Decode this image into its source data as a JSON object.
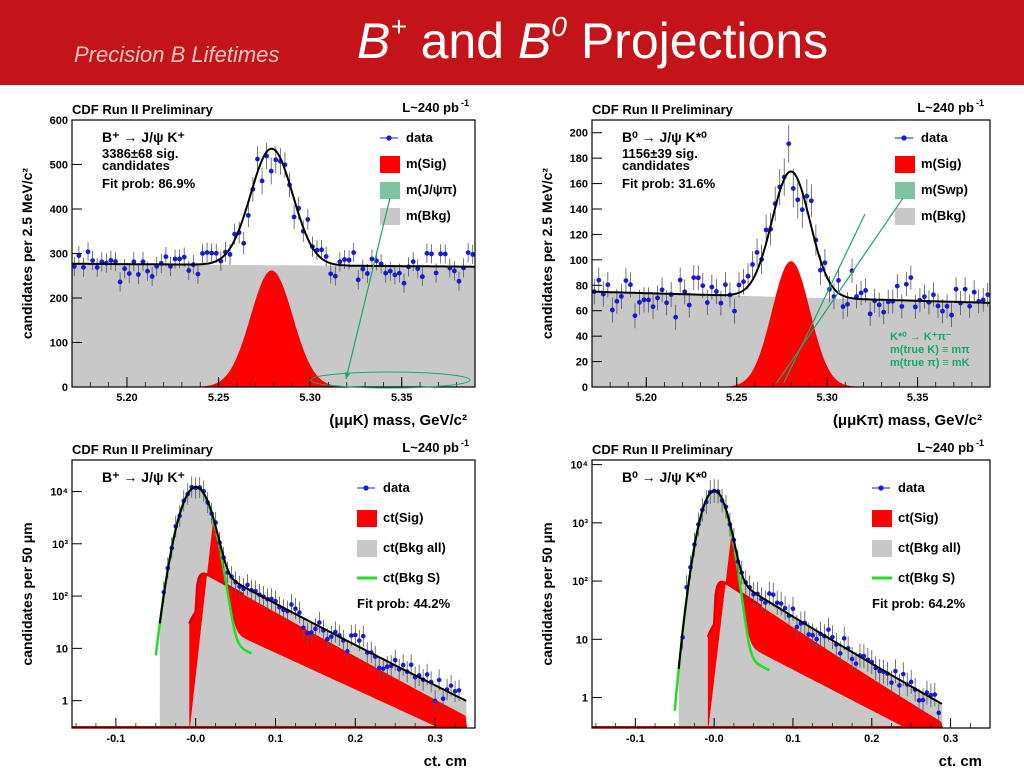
{
  "header": {
    "subtitle": "Precision B Lifetimes",
    "title_b_plus": "B",
    "title_b_plus_sup": "+",
    "title_and": "and",
    "title_b_zero": "B",
    "title_b_zero_sup": "0",
    "title_projections": "Projections"
  },
  "colors": {
    "header": "#c4141a",
    "signal": "#ff0000",
    "background_fill": "#c8c8c8",
    "swap": "#7fc4a0",
    "data": "#1818d8",
    "bkg_s": "#22dd22",
    "annotation": "#19a86b"
  },
  "chart_data": [
    {
      "id": "bplus-mass",
      "type": "scatter",
      "banner": "CDF Run II Preliminary",
      "lumi": "L~240 pb",
      "lumi_sup": "-1",
      "decay": "B⁺ → J/ψ K⁺",
      "yield_line": "3386±68 sig.",
      "yield_line2": "candidates",
      "fit_prob": "Fit prob: 86.9%",
      "xlabel": "(μμK) mass, GeV/c²",
      "ylabel": "candidates per 2.5 MeV/c²",
      "xlim": [
        5.17,
        5.39
      ],
      "ylim": [
        0,
        600
      ],
      "log": false,
      "xticks": [
        "5.20",
        "5.25",
        "5.30",
        "5.35"
      ],
      "xtick_values": [
        5.2,
        5.25,
        5.3,
        5.35
      ],
      "yticks": [
        "0",
        "100",
        "200",
        "300",
        "400",
        "500",
        "600"
      ],
      "ytick_values": [
        0,
        100,
        200,
        300,
        400,
        500,
        600
      ],
      "legend": [
        {
          "label": "data",
          "kind": "marker"
        },
        {
          "label": "m(Sig)",
          "kind": "box",
          "color": "#ff0000"
        },
        {
          "label": "m(J/ψπ)",
          "kind": "box",
          "color": "#7fc4a0"
        },
        {
          "label": "m(Bkg)",
          "kind": "box",
          "color": "#c8c8c8"
        }
      ],
      "model": {
        "bkg_level": 277,
        "bkg_slope": -30,
        "sig_peak": 262,
        "sig_mean": 5.279,
        "sig_sigma": 0.0115
      }
    },
    {
      "id": "bzero-mass",
      "type": "scatter",
      "banner": "CDF Run II Preliminary",
      "lumi": "L~240 pb",
      "lumi_sup": "-1",
      "decay": "B⁰ → J/ψ K*⁰",
      "yield_line": "1156±39 sig.",
      "yield_line2": "candidates",
      "fit_prob": "Fit prob: 31.6%",
      "xlabel": "(μμKπ) mass, GeV/c²",
      "ylabel": "candidates per 2.5 MeV/c²",
      "xlim": [
        5.17,
        5.39
      ],
      "ylim": [
        0,
        210
      ],
      "log": false,
      "xticks": [
        "5.20",
        "5.25",
        "5.30",
        "5.35"
      ],
      "xtick_values": [
        5.2,
        5.25,
        5.3,
        5.35
      ],
      "yticks": [
        "0",
        "20",
        "40",
        "60",
        "80",
        "100",
        "120",
        "140",
        "160",
        "180",
        "200"
      ],
      "ytick_values": [
        0,
        20,
        40,
        60,
        80,
        100,
        120,
        140,
        160,
        180,
        200
      ],
      "legend": [
        {
          "label": "data",
          "kind": "marker"
        },
        {
          "label": "m(Sig)",
          "kind": "box",
          "color": "#ff0000"
        },
        {
          "label": "m(Swp)",
          "kind": "box",
          "color": "#7fc4a0"
        },
        {
          "label": "m(Bkg)",
          "kind": "box",
          "color": "#c8c8c8"
        }
      ],
      "annotation": [
        "K*⁰ → K⁺π⁻",
        "m(true K) ≡ mπ",
        "m(true π) ≡ mK"
      ],
      "model": {
        "bkg_level": 75,
        "bkg_slope": -40,
        "sig_peak": 99,
        "sig_mean": 5.28,
        "sig_sigma": 0.0105
      }
    },
    {
      "id": "bplus-ct",
      "type": "scatter",
      "banner": "CDF Run II Preliminary",
      "lumi": "L~240 pb",
      "lumi_sup": "-1",
      "decay": "B⁺ → J/ψ K⁺",
      "fit_prob": "Fit prob: 44.2%",
      "xlabel": "ct, cm",
      "ylabel": "candidates per 50 μm",
      "xlim": [
        -0.155,
        0.35
      ],
      "ylim": [
        0.3,
        40000
      ],
      "log": true,
      "xticks": [
        "-0.1",
        "-0.0",
        "0.1",
        "0.2",
        "0.3"
      ],
      "xtick_values": [
        -0.1,
        0,
        0.1,
        0.2,
        0.3
      ],
      "yticks": [
        "1",
        "10",
        "10²",
        "10³",
        "10⁴"
      ],
      "ytick_values": [
        1,
        10,
        100,
        1000,
        10000
      ],
      "legend": [
        {
          "label": "data",
          "kind": "marker"
        },
        {
          "label": "ct(Sig)",
          "kind": "box",
          "color": "#ff0000"
        },
        {
          "label": "ct(Bkg all)",
          "kind": "box",
          "color": "#c8c8c8"
        },
        {
          "label": "ct(Bkg S)",
          "kind": "line",
          "color": "#22dd22"
        }
      ],
      "model": {
        "peak": 12000,
        "prompt_sigma": 0.013,
        "sig_amp": 300,
        "sig_tau": 0.049,
        "endpoint": 0.34
      }
    },
    {
      "id": "bzero-ct",
      "type": "scatter",
      "banner": "CDF Run II Preliminary",
      "lumi": "L~240 pb",
      "lumi_sup": "-1",
      "decay": "B⁰ → J/ψ K*⁰",
      "fit_prob": "Fit prob: 64.2%",
      "xlabel": "ct, cm",
      "ylabel": "candidates per 50 μm",
      "xlim": [
        -0.155,
        0.35
      ],
      "ylim": [
        0.3,
        12000
      ],
      "log": true,
      "xticks": [
        "-0.1",
        "-0.0",
        "0.1",
        "0.2",
        "0.3"
      ],
      "xtick_values": [
        -0.1,
        0,
        0.1,
        0.2,
        0.3
      ],
      "yticks": [
        "1",
        "10",
        "10²",
        "10³",
        "10⁴"
      ],
      "ytick_values": [
        1,
        10,
        100,
        1000,
        10000
      ],
      "legend": [
        {
          "label": "data",
          "kind": "marker"
        },
        {
          "label": "ct(Sig)",
          "kind": "box",
          "color": "#ff0000"
        },
        {
          "label": "ct(Bkg all)",
          "kind": "box",
          "color": "#c8c8c8"
        },
        {
          "label": "ct(Bkg S)",
          "kind": "line",
          "color": "#22dd22"
        }
      ],
      "model": {
        "peak": 3500,
        "prompt_sigma": 0.012,
        "sig_amp": 110,
        "sig_tau": 0.046,
        "endpoint": 0.29
      }
    }
  ]
}
